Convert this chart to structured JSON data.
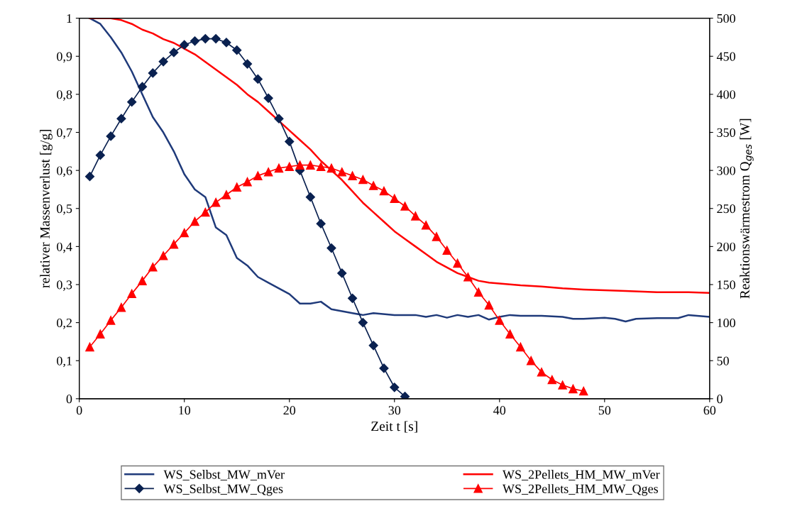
{
  "chart_data": {
    "type": "line",
    "xlabel": "Zeit t [s]",
    "ylabel": "relativer Massenverlust [g/g]",
    "y2label": "Reaktionswärmestrom Q$_{ges}$ [W]",
    "xlim": [
      0,
      60
    ],
    "xticks": [
      0,
      10,
      20,
      30,
      40,
      50,
      60
    ],
    "ylim": [
      0,
      1
    ],
    "yticks": [
      {
        "value": 0,
        "label": "0"
      },
      {
        "value": 0.1,
        "label": "0,1"
      },
      {
        "value": 0.2,
        "label": "0,2"
      },
      {
        "value": 0.3,
        "label": "0,3"
      },
      {
        "value": 0.4,
        "label": "0,4"
      },
      {
        "value": 0.5,
        "label": "0,5"
      },
      {
        "value": 0.6,
        "label": "0,6"
      },
      {
        "value": 0.7,
        "label": "0,7"
      },
      {
        "value": 0.8,
        "label": "0,8"
      },
      {
        "value": 0.9,
        "label": "0,9"
      },
      {
        "value": 1,
        "label": "1"
      }
    ],
    "y2lim": [
      0,
      500
    ],
    "y2ticks": [
      0,
      50,
      100,
      150,
      200,
      250,
      300,
      350,
      400,
      450,
      500
    ],
    "grid": false,
    "legend": "bottom",
    "series": [
      {
        "name": "WS_Selbst_MW_mVer",
        "color": "#1f3a7a",
        "marker": "none",
        "x": [
          1,
          2,
          3,
          4,
          5,
          6,
          7,
          8,
          9,
          10,
          11,
          12,
          13,
          14,
          15,
          16,
          17,
          18,
          19,
          20,
          21,
          22,
          23,
          24,
          25,
          26,
          27,
          28,
          30,
          32,
          33,
          34,
          35,
          36,
          37,
          38,
          39,
          40,
          41,
          42,
          44,
          46,
          47,
          48,
          50,
          51,
          52,
          53,
          55,
          57,
          58,
          60
        ],
        "values": [
          1.0,
          0.985,
          0.95,
          0.91,
          0.86,
          0.8,
          0.74,
          0.7,
          0.65,
          0.59,
          0.55,
          0.53,
          0.45,
          0.43,
          0.37,
          0.35,
          0.32,
          0.305,
          0.29,
          0.275,
          0.25,
          0.25,
          0.255,
          0.235,
          0.23,
          0.225,
          0.22,
          0.225,
          0.22,
          0.22,
          0.215,
          0.22,
          0.213,
          0.22,
          0.215,
          0.22,
          0.208,
          0.215,
          0.22,
          0.218,
          0.218,
          0.215,
          0.21,
          0.21,
          0.213,
          0.21,
          0.203,
          0.21,
          0.212,
          0.212,
          0.22,
          0.215
        ]
      },
      {
        "name": "WS_Selbst_MW_Qges",
        "color": "#0a2150",
        "marker": "diamond",
        "axis": "y2",
        "x": [
          1,
          2,
          3,
          4,
          5,
          6,
          7,
          8,
          9,
          10,
          11,
          12,
          13,
          14,
          15,
          16,
          17,
          18,
          19,
          20,
          21,
          22,
          23,
          24,
          25,
          26,
          27,
          28,
          29,
          30,
          31
        ],
        "values": [
          292,
          320,
          345,
          368,
          390,
          410,
          428,
          443,
          455,
          465,
          470,
          473,
          473,
          468,
          458,
          440,
          420,
          395,
          368,
          338,
          300,
          265,
          230,
          198,
          165,
          132,
          100,
          70,
          40,
          15,
          3
        ]
      },
      {
        "name": "WS_2Pellets_HM_MW_mVer",
        "color": "#ff0000",
        "marker": "none",
        "x": [
          1,
          3,
          4,
          5,
          6,
          7,
          8,
          9,
          10,
          11,
          12,
          13,
          14,
          15,
          16,
          17,
          18,
          19,
          20,
          21,
          22,
          23,
          24,
          25,
          26,
          27,
          28,
          29,
          30,
          31,
          32,
          33,
          34,
          35,
          36,
          37,
          38,
          39,
          40,
          42,
          44,
          46,
          48,
          50,
          52,
          55,
          58,
          60
        ],
        "values": [
          1.0,
          1.0,
          0.995,
          0.985,
          0.97,
          0.96,
          0.945,
          0.935,
          0.92,
          0.905,
          0.885,
          0.865,
          0.845,
          0.825,
          0.8,
          0.78,
          0.755,
          0.73,
          0.705,
          0.68,
          0.655,
          0.625,
          0.6,
          0.575,
          0.545,
          0.515,
          0.49,
          0.465,
          0.44,
          0.42,
          0.4,
          0.38,
          0.36,
          0.345,
          0.33,
          0.32,
          0.31,
          0.305,
          0.303,
          0.298,
          0.295,
          0.29,
          0.287,
          0.285,
          0.283,
          0.28,
          0.28,
          0.278
        ]
      },
      {
        "name": "WS_2Pellets_HM_MW_Qges",
        "color": "#ff0000",
        "marker": "triangle",
        "axis": "y2",
        "x": [
          1,
          2,
          3,
          4,
          5,
          6,
          7,
          8,
          9,
          10,
          11,
          12,
          13,
          14,
          15,
          16,
          17,
          18,
          19,
          20,
          21,
          22,
          23,
          24,
          25,
          26,
          27,
          28,
          29,
          30,
          31,
          32,
          33,
          34,
          35,
          36,
          37,
          38,
          39,
          40,
          41,
          42,
          43,
          44,
          45,
          46,
          47,
          48
        ],
        "values": [
          68,
          85,
          103,
          120,
          138,
          155,
          173,
          188,
          203,
          218,
          233,
          245,
          258,
          268,
          278,
          285,
          293,
          298,
          303,
          305,
          307,
          307,
          305,
          303,
          298,
          293,
          288,
          280,
          273,
          263,
          253,
          240,
          228,
          213,
          195,
          178,
          160,
          140,
          123,
          103,
          85,
          68,
          50,
          35,
          25,
          18,
          13,
          10
        ]
      }
    ]
  }
}
